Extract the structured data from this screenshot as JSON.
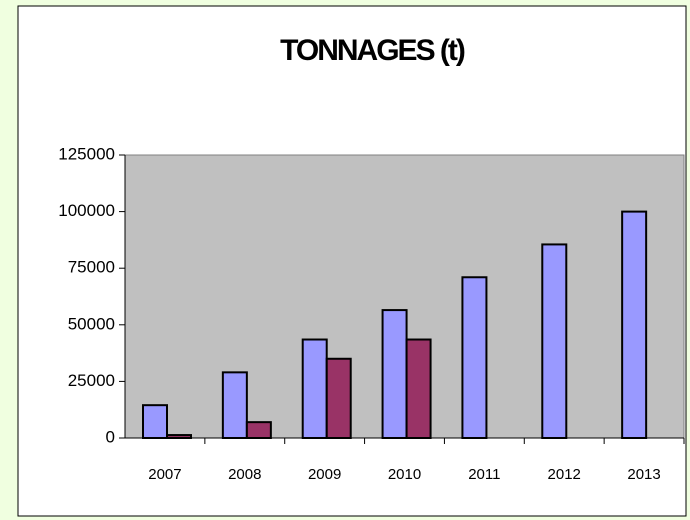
{
  "chart_data": {
    "type": "bar",
    "title": "TONNAGES (t)",
    "categories": [
      "2007",
      "2008",
      "2009",
      "2010",
      "2011",
      "2012",
      "2013"
    ],
    "series": [
      {
        "color": "#9999ff",
        "values": [
          14500,
          29000,
          43500,
          56500,
          71000,
          85500,
          100000
        ]
      },
      {
        "color": "#993366",
        "values": [
          1300,
          7000,
          35000,
          43500,
          null,
          null,
          null
        ]
      }
    ],
    "ylim": [
      0,
      125000
    ],
    "yticks": [
      0,
      25000,
      50000,
      75000,
      100000,
      125000
    ],
    "grid": false
  }
}
